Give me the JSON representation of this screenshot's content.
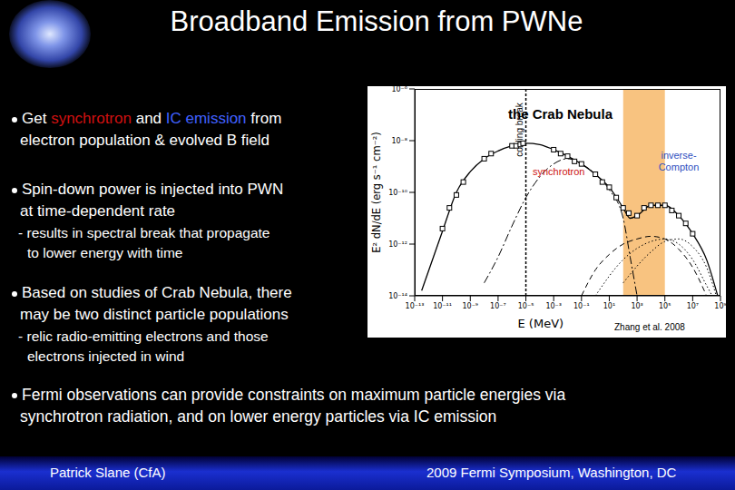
{
  "slide": {
    "title": "Broadband Emission from PWNe",
    "bullets": [
      {
        "lines": [
          [
            {
              "text": "Get "
            },
            {
              "text": "synchrotron",
              "color": "#d01010"
            },
            {
              "text": " and "
            },
            {
              "text": "IC emission",
              "color": "#4060ff"
            },
            {
              "text": " from"
            }
          ],
          [
            {
              "text": "electron population & evolved B field"
            }
          ]
        ]
      },
      {
        "lines": [
          [
            {
              "text": "Spin-down power is injected into PWN"
            }
          ],
          [
            {
              "text": "at time-dependent rate"
            }
          ]
        ],
        "sub": [
          "- results in spectral break that propagate",
          "to lower energy with time"
        ]
      },
      {
        "lines": [
          [
            {
              "text": "Based on studies of Crab Nebula, there"
            }
          ],
          [
            {
              "text": "may be two distinct particle populations"
            }
          ]
        ],
        "sub": [
          "- relic radio-emitting electrons and those",
          "electrons injected in wind"
        ]
      },
      {
        "lines": [
          [
            {
              "text": "Fermi observations can provide constraints on maximum particle energies via"
            }
          ],
          [
            {
              "text": "synchrotron radiation, and on lower energy particles via IC emission"
            }
          ]
        ]
      }
    ],
    "footer": {
      "left": "Patrick Slane (CfA)",
      "right": "2009 Fermi Symposium, Washington, DC"
    }
  },
  "chart_data": {
    "type": "line",
    "title": "the Crab Nebula",
    "x_label": "E (MeV)",
    "y_label": "E² dN/dE (erg s⁻¹ cm⁻²)",
    "source": "Zhang et al. 2008",
    "log": true,
    "grid": false,
    "xlim": [
      1e-13,
      1000000000.0
    ],
    "xticks": [
      {
        "value": 1e-13,
        "label": "10⁻¹³"
      },
      {
        "value": 1e-11,
        "label": "10⁻¹¹"
      },
      {
        "value": 1e-09,
        "label": "10⁻⁹"
      },
      {
        "value": 1e-07,
        "label": "10⁻⁷"
      },
      {
        "value": 1e-05,
        "label": "10⁻⁵"
      },
      {
        "value": 0.001,
        "label": "10⁻³"
      },
      {
        "value": 0.1,
        "label": "10⁻¹"
      },
      {
        "value": 10,
        "label": "10¹"
      },
      {
        "value": 1000,
        "label": "10³"
      },
      {
        "value": 100000,
        "label": "10⁵"
      },
      {
        "value": 10000000.0,
        "label": "10⁷"
      },
      {
        "value": 1000000000.0,
        "label": "10⁹"
      }
    ],
    "ylim": [
      1e-14,
      1e-06
    ],
    "yticks": [
      {
        "value": 1e-14,
        "label": "10⁻¹⁴"
      },
      {
        "value": 1e-12,
        "label": "10⁻¹²"
      },
      {
        "value": 1e-10,
        "label": "10⁻¹⁰"
      },
      {
        "value": 1e-08,
        "label": "10⁻⁸"
      },
      {
        "value": 1e-06,
        "label": "10⁻⁶"
      }
    ],
    "band": {
      "x": [
        100,
        100000
      ],
      "color": "#f5a33c"
    },
    "cooling_break": {
      "x": 1e-05,
      "label": "cooling break"
    },
    "annotations": [
      {
        "text": "synchrotron",
        "color": "#cc1111"
      },
      {
        "text": "inverse-Compton",
        "color": "#2f4fc0"
      }
    ],
    "series": [
      {
        "type": "line",
        "line_style": "solid",
        "color": "#000000",
        "x": [
          3.16e-13,
          1e-11,
          1e-10,
          1e-09,
          1e-08,
          1e-07,
          1e-06,
          1e-05,
          0.0001,
          0.001,
          0.01,
          0.1,
          1,
          10,
          100,
          316,
          1000,
          10000,
          100000,
          1000000,
          10000000.0,
          100000000.0,
          631000000.0
        ],
        "values": [
          1.58e-14,
          3.16e-12,
          1e-10,
          6.31e-10,
          2e-09,
          3.98e-09,
          6.31e-09,
          7.94e-09,
          7.08e-09,
          4.47e-09,
          2.51e-09,
          1.26e-09,
          5.01e-10,
          1.58e-10,
          2.51e-11,
          1e-11,
          1.26e-11,
          3.16e-11,
          3.16e-11,
          1.26e-11,
          2.51e-12,
          2.51e-13,
          1e-14
        ]
      },
      {
        "type": "line",
        "line_style": "dashdot",
        "color": "#000000",
        "x": [
          1e-08,
          1e-07,
          1e-06,
          1e-05,
          0.0001,
          0.001,
          0.01,
          0.1,
          1,
          10,
          100,
          316,
          1000
        ],
        "values": [
          3.16e-14,
          3.16e-13,
          5.01e-12,
          6.31e-11,
          3.98e-10,
          1.26e-09,
          2e-09,
          1.26e-09,
          5.01e-10,
          1.26e-10,
          1e-11,
          3.16e-13,
          1e-14
        ]
      },
      {
        "type": "line",
        "line_style": "dashed",
        "color": "#000000",
        "x": [
          0.1,
          1,
          10,
          100,
          1000,
          10000,
          100000,
          1000000,
          10000000.0,
          100000000.0
        ],
        "values": [
          1e-14,
          1e-13,
          3.98e-13,
          1e-12,
          1.58e-12,
          2e-12,
          1.58e-12,
          6.31e-13,
          1.26e-13,
          1e-14
        ]
      },
      {
        "type": "line",
        "line_style": "dotted",
        "color": "#000000",
        "x": [
          100,
          10000,
          100000,
          1000000,
          10000000.0,
          100000000.0,
          501000000.0
        ],
        "values": [
          3.16e-14,
          5.01e-13,
          1.26e-12,
          1.58e-12,
          7.94e-13,
          1.26e-13,
          1e-14
        ]
      },
      {
        "type": "line",
        "line_style": "dotted",
        "color": "#000000",
        "x": [
          1,
          100,
          10000,
          100000,
          1000000,
          10000000.0,
          100000000.0,
          251000000.0
        ],
        "values": [
          1e-14,
          2.51e-13,
          1.26e-12,
          1.58e-12,
          1e-12,
          2.51e-13,
          2.51e-14,
          1e-14
        ]
      },
      {
        "type": "scatter",
        "marker": "square",
        "color": "#000000",
        "x": [
          1e-11,
          3.16e-11,
          1e-10,
          3.16e-10,
          1e-08,
          3.16e-08,
          1e-06,
          2e-06,
          3.98e-06,
          6.31e-06,
          0.001,
          0.00316,
          0.01,
          0.0316,
          0.1,
          1,
          3.16,
          10,
          31.6,
          100,
          251,
          1000,
          3162,
          10000,
          31623,
          100000,
          316228,
          1000000,
          3160000.0,
          10000000.0
        ],
        "values": [
          3.98e-12,
          2.51e-11,
          7.94e-11,
          2.51e-10,
          2e-09,
          3.16e-09,
          6.31e-09,
          6.31e-09,
          7.08e-09,
          7.94e-09,
          4.47e-09,
          3.16e-09,
          2.51e-09,
          1.58e-09,
          1.26e-09,
          5.01e-10,
          2.51e-10,
          1.58e-10,
          6.31e-11,
          2.51e-11,
          1.58e-11,
          1.26e-11,
          2.51e-11,
          3.16e-11,
          3.16e-11,
          3.16e-11,
          2e-11,
          1.26e-11,
          6.31e-12,
          2.51e-12
        ]
      }
    ]
  }
}
